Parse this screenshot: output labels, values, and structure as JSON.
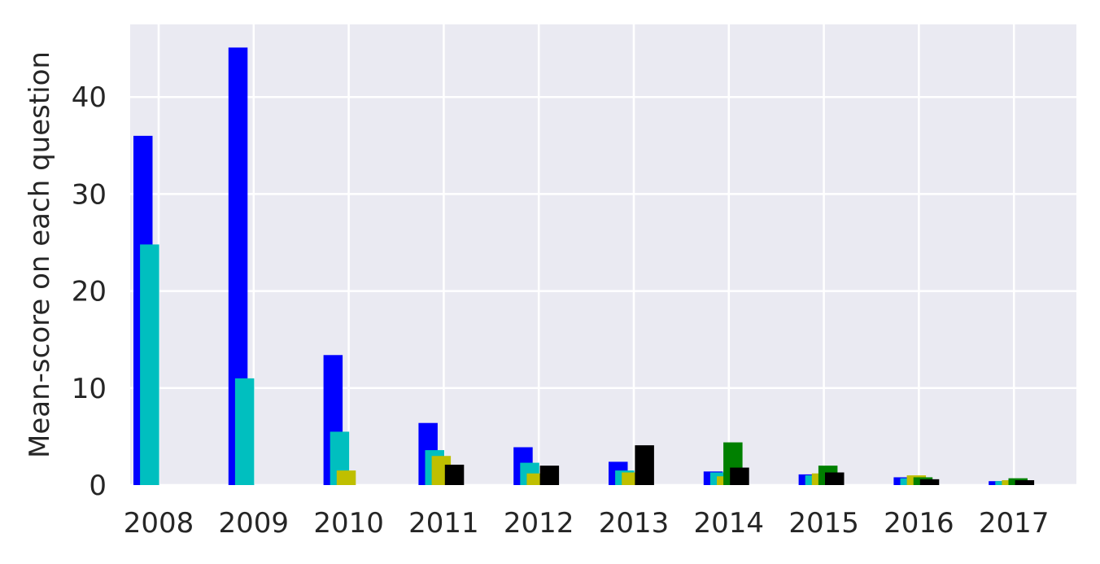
{
  "chart_data": {
    "type": "bar",
    "title": "",
    "xlabel": "",
    "ylabel": "Mean-score on each question",
    "categories": [
      "2008",
      "2009",
      "2010",
      "2011",
      "2012",
      "2013",
      "2014",
      "2015",
      "2016",
      "2017"
    ],
    "yticks": [
      "0",
      "10",
      "20",
      "30",
      "40"
    ],
    "ylim": [
      0,
      47.5
    ],
    "grid": true,
    "legend": "none",
    "background": "#eaeaf2",
    "series": [
      {
        "color": "#0000ff",
        "values": [
          36.0,
          45.1,
          13.4,
          6.4,
          3.9,
          2.4,
          1.4,
          1.1,
          0.8,
          0.4
        ]
      },
      {
        "color": "#00bfbf",
        "values": [
          24.8,
          11.0,
          5.5,
          3.6,
          2.3,
          1.5,
          1.3,
          1.0,
          0.7,
          0.4
        ]
      },
      {
        "color": "#bfbf00",
        "values": [
          0,
          0,
          1.5,
          3.0,
          1.2,
          1.3,
          0.9,
          1.2,
          1.0,
          0.5
        ]
      },
      {
        "color": "#008000",
        "values": [
          0,
          0,
          0,
          0,
          0,
          0,
          4.4,
          2.0,
          0.8,
          0.7
        ]
      },
      {
        "color": "#000000",
        "values": [
          0,
          0,
          0,
          2.1,
          2.0,
          4.1,
          1.8,
          1.3,
          0.6,
          0.5
        ]
      }
    ]
  }
}
